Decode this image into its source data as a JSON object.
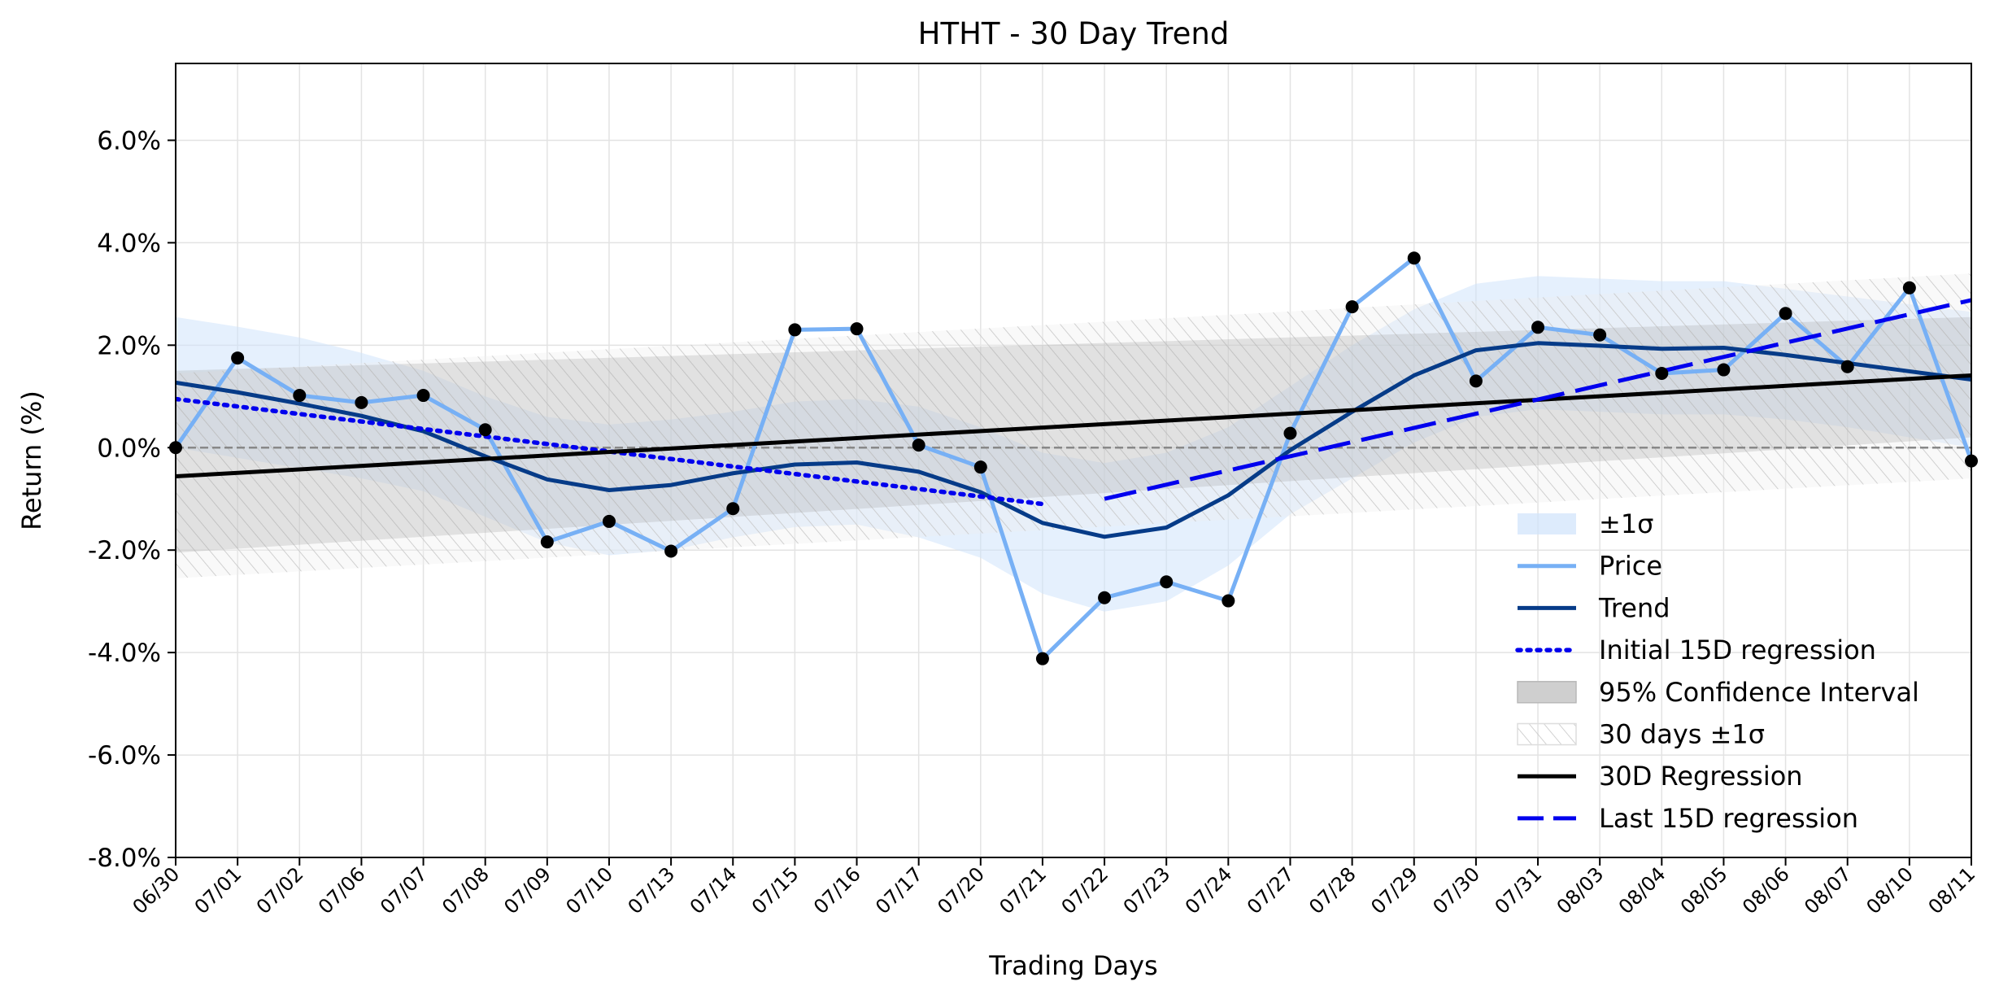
{
  "chart_data": {
    "type": "line",
    "title": "HTHT - 30 Day Trend",
    "xlabel": "Trading Days",
    "ylabel": "Return (%)",
    "ylim": [
      -8.0,
      7.5
    ],
    "yticks": [
      -8.0,
      -6.0,
      -4.0,
      -2.0,
      0.0,
      2.0,
      4.0,
      6.0
    ],
    "ytick_labels": [
      "-8.0%",
      "-6.0%",
      "-4.0%",
      "-2.0%",
      "0.0%",
      "2.0%",
      "4.0%",
      "6.0%"
    ],
    "grid": true,
    "legend_position": "lower-right",
    "categories": [
      "06/30",
      "07/01",
      "07/02",
      "07/06",
      "07/07",
      "07/08",
      "07/09",
      "07/10",
      "07/13",
      "07/14",
      "07/15",
      "07/16",
      "07/17",
      "07/20",
      "07/21",
      "07/22",
      "07/23",
      "07/24",
      "07/27",
      "07/28",
      "07/29",
      "07/30",
      "07/31",
      "08/03",
      "08/04",
      "08/05",
      "08/06",
      "08/07",
      "08/10",
      "08/11"
    ],
    "series": [
      {
        "name": "Price",
        "kind": "line",
        "color": "#77b0f5",
        "values": [
          0.0,
          1.75,
          1.02,
          0.88,
          1.02,
          0.35,
          -1.84,
          -1.44,
          -2.02,
          -1.19,
          2.3,
          2.32,
          0.05,
          -0.38,
          -4.12,
          -2.93,
          -2.62,
          -2.99,
          0.28,
          2.75,
          3.7,
          1.3,
          2.35,
          2.2,
          1.45,
          1.52,
          2.62,
          1.58,
          3.12,
          -0.26
        ]
      },
      {
        "name": "Trend",
        "kind": "line",
        "color": "#063b88",
        "values": [
          1.27,
          1.08,
          0.86,
          0.62,
          0.32,
          -0.17,
          -0.62,
          -0.83,
          -0.73,
          -0.5,
          -0.33,
          -0.29,
          -0.47,
          -0.87,
          -1.47,
          -1.74,
          -1.56,
          -0.93,
          -0.05,
          0.7,
          1.41,
          1.9,
          2.04,
          1.99,
          1.93,
          1.95,
          1.81,
          1.65,
          1.49,
          1.33
        ]
      },
      {
        "name": "±1σ",
        "kind": "band",
        "color": "#cfe3fb",
        "upper": [
          2.55,
          2.36,
          2.15,
          1.85,
          1.5,
          1.0,
          0.6,
          0.45,
          0.55,
          0.7,
          0.9,
          0.95,
          0.8,
          0.4,
          -0.1,
          -0.3,
          -0.1,
          0.4,
          1.2,
          2.0,
          2.7,
          3.2,
          3.35,
          3.3,
          3.25,
          3.25,
          3.1,
          2.95,
          2.8,
          2.65
        ],
        "lower": [
          0.0,
          -0.2,
          -0.4,
          -0.6,
          -0.85,
          -1.35,
          -1.85,
          -2.1,
          -2.0,
          -1.75,
          -1.55,
          -1.5,
          -1.75,
          -2.15,
          -2.85,
          -3.2,
          -3.0,
          -2.3,
          -1.3,
          -0.6,
          0.1,
          0.6,
          0.75,
          0.7,
          0.65,
          0.65,
          0.55,
          0.4,
          0.2,
          0.0
        ]
      },
      {
        "name": "Initial 15D regression",
        "kind": "line",
        "style": "dotted",
        "color": "#0000ee",
        "x_start": "06/30",
        "x_end": "07/21",
        "y_start": 0.95,
        "y_end": -1.1
      },
      {
        "name": "95% Confidence Interval",
        "kind": "band",
        "color": "#d6d6d6",
        "x_start": "06/30",
        "x_end": "08/11",
        "upper_start": 1.5,
        "upper_end": 2.55,
        "lower_start": -2.05,
        "lower_end": 0.2
      },
      {
        "name": "30 days ±1σ",
        "kind": "band",
        "style": "hatched",
        "color": "#c8c8c8",
        "x_start": "06/30",
        "x_end": "08/11",
        "upper_start": 1.45,
        "upper_end": 3.4,
        "lower_start": -2.55,
        "lower_end": -0.6
      },
      {
        "name": "30D Regression",
        "kind": "line",
        "color": "#000000",
        "x_start": "06/30",
        "x_end": "08/11",
        "y_start": -0.56,
        "y_end": 1.41
      },
      {
        "name": "Last 15D regression",
        "kind": "line",
        "style": "dashed",
        "color": "#0000ee",
        "x_start": "07/22",
        "x_end": "08/11",
        "y_start": -1.0,
        "y_end": 2.88
      }
    ],
    "reference_line": {
      "y": 0.0,
      "style": "dashed",
      "color": "#888888"
    },
    "legend": [
      "±1σ",
      "Price",
      "Trend",
      "Initial 15D regression",
      "95% Confidence Interval",
      "30 days ±1σ",
      "30D Regression",
      "Last 15D regression"
    ]
  }
}
